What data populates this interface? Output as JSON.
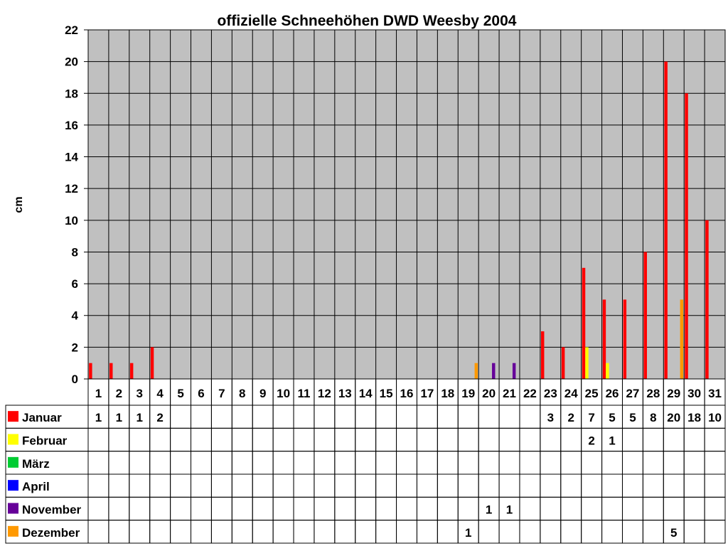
{
  "chart_data": {
    "type": "bar",
    "title": "offizielle Schneehöhen DWD Weesby 2004",
    "xlabel": "",
    "ylabel": "cm",
    "ylim": [
      0,
      22
    ],
    "yticks": [
      0,
      2,
      4,
      6,
      8,
      10,
      12,
      14,
      16,
      18,
      20,
      22
    ],
    "grid": true,
    "legend": "data-table",
    "categories": [
      "1",
      "2",
      "3",
      "4",
      "5",
      "6",
      "7",
      "8",
      "9",
      "10",
      "11",
      "12",
      "13",
      "14",
      "15",
      "16",
      "17",
      "18",
      "19",
      "20",
      "21",
      "22",
      "23",
      "24",
      "25",
      "26",
      "27",
      "28",
      "29",
      "30",
      "31"
    ],
    "series": [
      {
        "name": "Januar",
        "color": "#ff0000",
        "values": [
          1,
          1,
          1,
          2,
          null,
          null,
          null,
          null,
          null,
          null,
          null,
          null,
          null,
          null,
          null,
          null,
          null,
          null,
          null,
          null,
          null,
          null,
          3,
          2,
          7,
          5,
          5,
          8,
          20,
          18,
          10
        ]
      },
      {
        "name": "Februar",
        "color": "#ffff00",
        "values": [
          null,
          null,
          null,
          null,
          null,
          null,
          null,
          null,
          null,
          null,
          null,
          null,
          null,
          null,
          null,
          null,
          null,
          null,
          null,
          null,
          null,
          null,
          null,
          null,
          2,
          1,
          null,
          null,
          null,
          null,
          null
        ]
      },
      {
        "name": "März",
        "color": "#00cc33",
        "values": [
          null,
          null,
          null,
          null,
          null,
          null,
          null,
          null,
          null,
          null,
          null,
          null,
          null,
          null,
          null,
          null,
          null,
          null,
          null,
          null,
          null,
          null,
          null,
          null,
          null,
          null,
          null,
          null,
          null,
          null,
          null
        ]
      },
      {
        "name": "April",
        "color": "#0000ff",
        "values": [
          null,
          null,
          null,
          null,
          null,
          null,
          null,
          null,
          null,
          null,
          null,
          null,
          null,
          null,
          null,
          null,
          null,
          null,
          null,
          null,
          null,
          null,
          null,
          null,
          null,
          null,
          null,
          null,
          null,
          null,
          null
        ]
      },
      {
        "name": "November",
        "color": "#660099",
        "values": [
          null,
          null,
          null,
          null,
          null,
          null,
          null,
          null,
          null,
          null,
          null,
          null,
          null,
          null,
          null,
          null,
          null,
          null,
          null,
          1,
          1,
          null,
          null,
          null,
          null,
          null,
          null,
          null,
          null,
          null,
          null
        ]
      },
      {
        "name": "Dezember",
        "color": "#ff9900",
        "values": [
          null,
          null,
          null,
          null,
          null,
          null,
          null,
          null,
          null,
          null,
          null,
          null,
          null,
          null,
          null,
          null,
          null,
          null,
          1,
          null,
          null,
          null,
          null,
          null,
          null,
          null,
          null,
          null,
          5,
          null,
          null
        ]
      }
    ]
  },
  "style": {
    "plot_bg": "#c0c0c0",
    "grid_color": "#000000"
  }
}
